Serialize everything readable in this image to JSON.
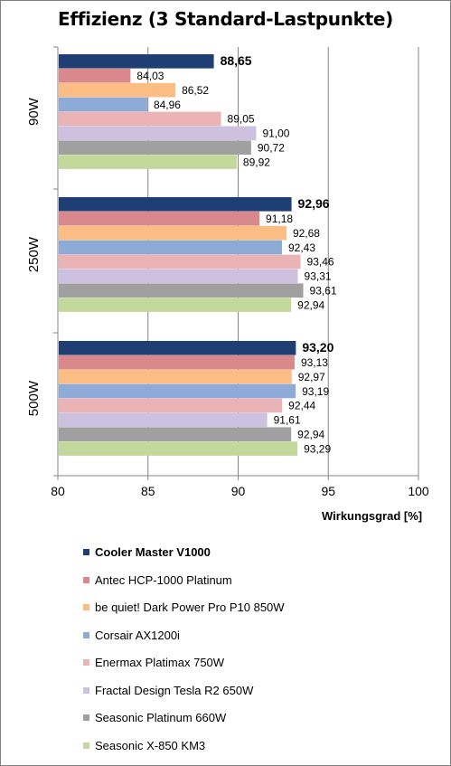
{
  "chart_data": {
    "type": "bar",
    "orientation": "horizontal",
    "title": "Effizienz (3 Standard-Lastpunkte)",
    "xlabel": "Wirkungsgrad [%]",
    "ylabel": "",
    "xlim": [
      80,
      100
    ],
    "x_ticks": [
      "80",
      "85",
      "90",
      "95",
      "100"
    ],
    "grid": true,
    "legend_position": "bottom",
    "categories": [
      "90W",
      "250W",
      "500W"
    ],
    "series": [
      {
        "name": "Cooler Master V1000",
        "color": "#1f3f74",
        "bold": true,
        "values": [
          88.65,
          92.96,
          93.2
        ],
        "labels": [
          "88,65",
          "92,96",
          "93,20"
        ]
      },
      {
        "name": "Antec HCP-1000 Platinum",
        "color": "#d9888b",
        "values": [
          84.03,
          91.18,
          93.13
        ],
        "labels": [
          "84,03",
          "91,18",
          "93,13"
        ]
      },
      {
        "name": "be quiet! Dark Power Pro P10 850W",
        "color": "#fbbd84",
        "values": [
          86.52,
          92.68,
          92.97
        ],
        "labels": [
          "86,52",
          "92,68",
          "92,97"
        ]
      },
      {
        "name": "Corsair AX1200i",
        "color": "#8eabd8",
        "values": [
          84.96,
          92.43,
          93.19
        ],
        "labels": [
          "84,96",
          "92,43",
          "93,19"
        ]
      },
      {
        "name": "Enermax Platimax 750W",
        "color": "#eab3b6",
        "values": [
          89.05,
          93.46,
          92.44
        ],
        "labels": [
          "89,05",
          "93,46",
          "92,44"
        ]
      },
      {
        "name": "Fractal Design Tesla R2 650W",
        "color": "#cdc1df",
        "values": [
          91.0,
          93.31,
          91.61
        ],
        "labels": [
          "91,00",
          "93,31",
          "91,61"
        ]
      },
      {
        "name": "Seasonic Platinum 660W",
        "color": "#a0a0a0",
        "values": [
          90.72,
          93.61,
          92.94
        ],
        "labels": [
          "90,72",
          "93,61",
          "92,94"
        ]
      },
      {
        "name": "Seasonic X-850 KM3",
        "color": "#c3d89b",
        "values": [
          89.92,
          92.94,
          93.29
        ],
        "labels": [
          "89,92",
          "92,94",
          "93,29"
        ]
      }
    ]
  }
}
